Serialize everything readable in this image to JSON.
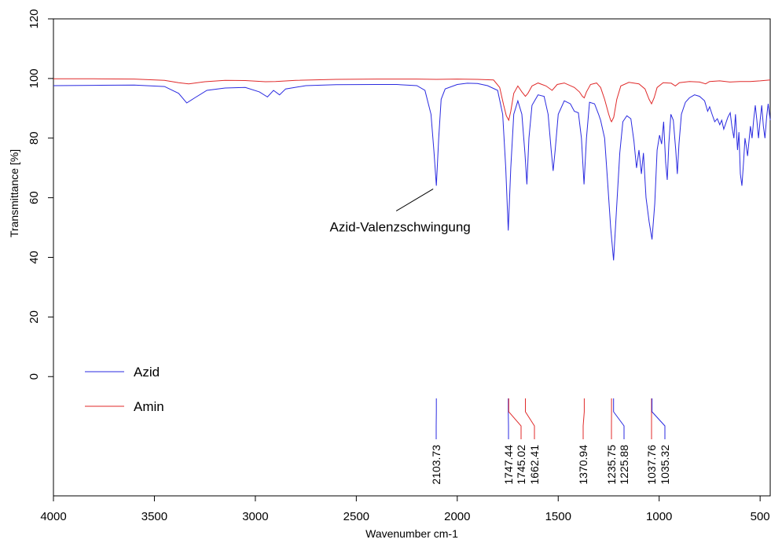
{
  "chart_data": {
    "type": "line",
    "xlabel": "Wavenumber cm-1",
    "ylabel": "Transmittance [%]",
    "xlim": [
      4000,
      450
    ],
    "ylim": [
      -40,
      120
    ],
    "x_reversed": true,
    "xticks": [
      4000,
      3500,
      3000,
      2500,
      2000,
      1500,
      1000,
      500
    ],
    "yticks": [
      0,
      20,
      40,
      60,
      80,
      100,
      120
    ],
    "grid": false,
    "legend": {
      "placement": "bottom-left"
    },
    "annotation": {
      "text": "Azid-Valenzschwingung",
      "x": 2103.73,
      "y": 64
    },
    "series": [
      {
        "name": "Azid",
        "color": "#2a2ae0",
        "points": [
          [
            4000,
            97.6
          ],
          [
            3800,
            97.7
          ],
          [
            3600,
            97.8
          ],
          [
            3450,
            97.3
          ],
          [
            3380,
            95.0
          ],
          [
            3340,
            91.8
          ],
          [
            3300,
            93.5
          ],
          [
            3240,
            96.0
          ],
          [
            3150,
            96.8
          ],
          [
            3050,
            97.0
          ],
          [
            2980,
            95.5
          ],
          [
            2940,
            93.8
          ],
          [
            2910,
            96.0
          ],
          [
            2880,
            94.5
          ],
          [
            2850,
            96.5
          ],
          [
            2750,
            97.6
          ],
          [
            2600,
            97.9
          ],
          [
            2400,
            98.0
          ],
          [
            2300,
            98.0
          ],
          [
            2200,
            97.6
          ],
          [
            2160,
            96.0
          ],
          [
            2130,
            88.0
          ],
          [
            2115,
            75.0
          ],
          [
            2103.73,
            64.0
          ],
          [
            2092,
            80.0
          ],
          [
            2080,
            93.0
          ],
          [
            2060,
            96.5
          ],
          [
            2000,
            98.0
          ],
          [
            1950,
            98.4
          ],
          [
            1900,
            98.3
          ],
          [
            1850,
            97.6
          ],
          [
            1800,
            96.0
          ],
          [
            1775,
            88.0
          ],
          [
            1760,
            70.0
          ],
          [
            1747.44,
            49.0
          ],
          [
            1735,
            70.0
          ],
          [
            1720,
            88.0
          ],
          [
            1700,
            92.5
          ],
          [
            1680,
            88.0
          ],
          [
            1665,
            75.0
          ],
          [
            1655,
            64.5
          ],
          [
            1645,
            80.0
          ],
          [
            1630,
            91.0
          ],
          [
            1600,
            94.5
          ],
          [
            1570,
            94.0
          ],
          [
            1550,
            88.0
          ],
          [
            1535,
            76.0
          ],
          [
            1525,
            69.0
          ],
          [
            1515,
            76.0
          ],
          [
            1500,
            88.0
          ],
          [
            1470,
            92.5
          ],
          [
            1440,
            91.5
          ],
          [
            1420,
            89.0
          ],
          [
            1400,
            88.5
          ],
          [
            1385,
            80.0
          ],
          [
            1372,
            64.5
          ],
          [
            1360,
            80.0
          ],
          [
            1345,
            92.0
          ],
          [
            1320,
            91.5
          ],
          [
            1300,
            88.0
          ],
          [
            1290,
            86.0
          ],
          [
            1270,
            80.0
          ],
          [
            1255,
            65.0
          ],
          [
            1240,
            50.0
          ],
          [
            1225.88,
            39.0
          ],
          [
            1212,
            55.0
          ],
          [
            1195,
            75.0
          ],
          [
            1180,
            85.5
          ],
          [
            1160,
            87.5
          ],
          [
            1140,
            86.5
          ],
          [
            1125,
            79.0
          ],
          [
            1112,
            70.0
          ],
          [
            1100,
            76.0
          ],
          [
            1088,
            68.0
          ],
          [
            1078,
            75.0
          ],
          [
            1065,
            60.0
          ],
          [
            1050,
            52.0
          ],
          [
            1035.32,
            46.0
          ],
          [
            1022,
            58.0
          ],
          [
            1010,
            76.0
          ],
          [
            998,
            81.0
          ],
          [
            988,
            78.0
          ],
          [
            978,
            85.5
          ],
          [
            968,
            72.0
          ],
          [
            960,
            66.0
          ],
          [
            952,
            78.0
          ],
          [
            942,
            88.0
          ],
          [
            930,
            86.0
          ],
          [
            918,
            76.0
          ],
          [
            910,
            68.0
          ],
          [
            902,
            78.0
          ],
          [
            890,
            88.0
          ],
          [
            870,
            92.0
          ],
          [
            850,
            93.5
          ],
          [
            825,
            94.5
          ],
          [
            800,
            94.0
          ],
          [
            775,
            92.5
          ],
          [
            760,
            89.0
          ],
          [
            750,
            90.5
          ],
          [
            738,
            88.0
          ],
          [
            725,
            85.5
          ],
          [
            712,
            86.5
          ],
          [
            700,
            84.5
          ],
          [
            690,
            86.0
          ],
          [
            680,
            83.0
          ],
          [
            670,
            85.0
          ],
          [
            660,
            87.0
          ],
          [
            648,
            88.5
          ],
          [
            640,
            84.0
          ],
          [
            630,
            80.0
          ],
          [
            622,
            88.0
          ],
          [
            612,
            76.0
          ],
          [
            605,
            82.0
          ],
          [
            598,
            68.0
          ],
          [
            590,
            64.0
          ],
          [
            582,
            72.0
          ],
          [
            575,
            80.0
          ],
          [
            568,
            77.0
          ],
          [
            562,
            74.0
          ],
          [
            555,
            79.0
          ],
          [
            548,
            84.0
          ],
          [
            540,
            80.0
          ],
          [
            532,
            86.0
          ],
          [
            524,
            91.0
          ],
          [
            516,
            86.0
          ],
          [
            508,
            80.0
          ],
          [
            500,
            86.0
          ],
          [
            492,
            91.0
          ],
          [
            484,
            84.0
          ],
          [
            476,
            80.0
          ],
          [
            468,
            87.0
          ],
          [
            460,
            91.5
          ],
          [
            450,
            86.0
          ]
        ]
      },
      {
        "name": "Amin",
        "color": "#e02a2a",
        "points": [
          [
            4000,
            99.9
          ],
          [
            3800,
            99.9
          ],
          [
            3600,
            99.8
          ],
          [
            3450,
            99.4
          ],
          [
            3380,
            98.6
          ],
          [
            3330,
            98.2
          ],
          [
            3250,
            98.9
          ],
          [
            3150,
            99.4
          ],
          [
            3050,
            99.3
          ],
          [
            2950,
            98.9
          ],
          [
            2900,
            99.0
          ],
          [
            2800,
            99.4
          ],
          [
            2600,
            99.7
          ],
          [
            2400,
            99.8
          ],
          [
            2200,
            99.8
          ],
          [
            2103.73,
            99.7
          ],
          [
            2000,
            99.8
          ],
          [
            1900,
            99.7
          ],
          [
            1820,
            99.5
          ],
          [
            1790,
            97.0
          ],
          [
            1770,
            91.0
          ],
          [
            1757,
            87.5
          ],
          [
            1745.02,
            86.0
          ],
          [
            1735,
            89.0
          ],
          [
            1720,
            95.0
          ],
          [
            1700,
            97.5
          ],
          [
            1680,
            95.5
          ],
          [
            1662.41,
            94.0
          ],
          [
            1650,
            95.0
          ],
          [
            1630,
            97.5
          ],
          [
            1600,
            98.5
          ],
          [
            1560,
            97.5
          ],
          [
            1530,
            96.0
          ],
          [
            1505,
            98.0
          ],
          [
            1470,
            98.5
          ],
          [
            1420,
            97.0
          ],
          [
            1395,
            95.5
          ],
          [
            1380,
            94.0
          ],
          [
            1370.94,
            93.5
          ],
          [
            1360,
            95.5
          ],
          [
            1340,
            98.0
          ],
          [
            1310,
            98.5
          ],
          [
            1290,
            97.0
          ],
          [
            1270,
            93.0
          ],
          [
            1250,
            88.0
          ],
          [
            1240,
            86.0
          ],
          [
            1235.75,
            85.5
          ],
          [
            1225,
            87.0
          ],
          [
            1210,
            93.0
          ],
          [
            1190,
            97.5
          ],
          [
            1150,
            98.7
          ],
          [
            1100,
            98.2
          ],
          [
            1070,
            96.5
          ],
          [
            1050,
            93.0
          ],
          [
            1037.76,
            91.5
          ],
          [
            1025,
            93.5
          ],
          [
            1010,
            97.0
          ],
          [
            980,
            98.6
          ],
          [
            940,
            98.4
          ],
          [
            920,
            97.5
          ],
          [
            900,
            98.6
          ],
          [
            850,
            99.0
          ],
          [
            800,
            98.8
          ],
          [
            770,
            98.2
          ],
          [
            750,
            99.0
          ],
          [
            700,
            99.2
          ],
          [
            650,
            98.8
          ],
          [
            600,
            99.0
          ],
          [
            550,
            99.0
          ],
          [
            500,
            99.2
          ],
          [
            450,
            99.5
          ]
        ]
      }
    ],
    "peak_markers": [
      {
        "label": "2103.73",
        "x": 2103.73,
        "color": "#2a2ae0"
      },
      {
        "label": "1747.44",
        "x": 1747.44,
        "color": "#2a2ae0"
      },
      {
        "label": "1745.02",
        "x": 1745.02,
        "color": "#e02a2a"
      },
      {
        "label": "1662.41",
        "x": 1662.41,
        "color": "#e02a2a"
      },
      {
        "label": "1370.94",
        "x": 1370.94,
        "color": "#e02a2a"
      },
      {
        "label": "1235.75",
        "x": 1235.75,
        "color": "#e02a2a"
      },
      {
        "label": "1225.88",
        "x": 1225.88,
        "color": "#2a2ae0"
      },
      {
        "label": "1037.76",
        "x": 1037.76,
        "color": "#e02a2a"
      },
      {
        "label": "1035.32",
        "x": 1035.32,
        "color": "#2a2ae0"
      }
    ]
  }
}
